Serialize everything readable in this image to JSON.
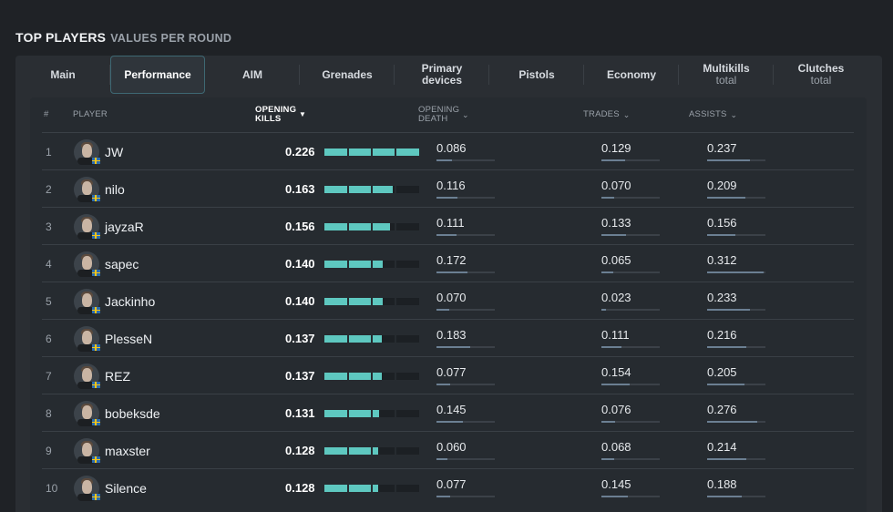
{
  "header": {
    "title": "TOP PLAYERS",
    "subtitle": "VALUES PER ROUND"
  },
  "tabs": [
    {
      "label": "Main",
      "sub": "",
      "active": false
    },
    {
      "label": "Performance",
      "sub": "",
      "active": true
    },
    {
      "label": "AIM",
      "sub": "",
      "active": false
    },
    {
      "label": "Grenades",
      "sub": "",
      "active": false
    },
    {
      "label": "Primary",
      "label2": "devices",
      "sub": "",
      "active": false
    },
    {
      "label": "Pistols",
      "sub": "",
      "active": false
    },
    {
      "label": "Economy",
      "sub": "",
      "active": false
    },
    {
      "label": "Multikills",
      "sub": "total",
      "active": false
    },
    {
      "label": "Clutches",
      "sub": "total",
      "active": false
    }
  ],
  "columns": {
    "rank": "#",
    "player": "PLAYER",
    "opening_kills": "OPENING KILLS",
    "opening_death": "OPENING DEATH",
    "trades": "TRADES",
    "assists": "ASSISTS"
  },
  "icons": {
    "sort_desc": "caret-down-icon",
    "sort_toggle": "chevron-down-icon",
    "flag": "flag-icon"
  },
  "colors": {
    "bar_fill": "#5ec8c0",
    "active_tab_border": "#3e6873",
    "mini_bar": "#6b7f92"
  },
  "rows": [
    {
      "rank": "1",
      "name": "JW",
      "opening_kills": "0.226",
      "opening_death": "0.086",
      "trades": "0.129",
      "assists": "0.237"
    },
    {
      "rank": "2",
      "name": "nilo",
      "opening_kills": "0.163",
      "opening_death": "0.116",
      "trades": "0.070",
      "assists": "0.209"
    },
    {
      "rank": "3",
      "name": "jayzaR",
      "opening_kills": "0.156",
      "opening_death": "0.111",
      "trades": "0.133",
      "assists": "0.156"
    },
    {
      "rank": "4",
      "name": "sapec",
      "opening_kills": "0.140",
      "opening_death": "0.172",
      "trades": "0.065",
      "assists": "0.312"
    },
    {
      "rank": "5",
      "name": "Jackinho",
      "opening_kills": "0.140",
      "opening_death": "0.070",
      "trades": "0.023",
      "assists": "0.233"
    },
    {
      "rank": "6",
      "name": "PlesseN",
      "opening_kills": "0.137",
      "opening_death": "0.183",
      "trades": "0.111",
      "assists": "0.216"
    },
    {
      "rank": "7",
      "name": "REZ",
      "opening_kills": "0.137",
      "opening_death": "0.077",
      "trades": "0.154",
      "assists": "0.205"
    },
    {
      "rank": "8",
      "name": "bobeksde",
      "opening_kills": "0.131",
      "opening_death": "0.145",
      "trades": "0.076",
      "assists": "0.276"
    },
    {
      "rank": "9",
      "name": "maxster",
      "opening_kills": "0.128",
      "opening_death": "0.060",
      "trades": "0.068",
      "assists": "0.214"
    },
    {
      "rank": "10",
      "name": "Silence",
      "opening_kills": "0.128",
      "opening_death": "0.077",
      "trades": "0.145",
      "assists": "0.188"
    }
  ]
}
